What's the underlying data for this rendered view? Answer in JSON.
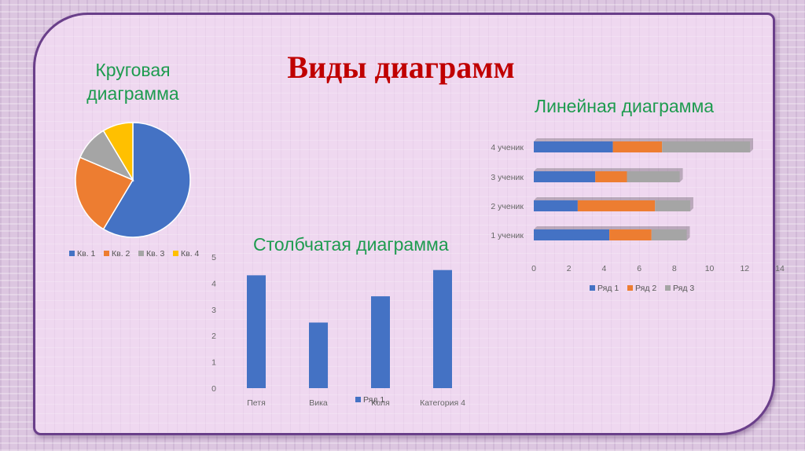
{
  "slide": {
    "title": "Виды диаграмм"
  },
  "pie_section": {
    "heading_line1": "Круговая",
    "heading_line2": "диаграмма"
  },
  "line_section": {
    "heading": "Линейная диаграмма"
  },
  "bar_section": {
    "heading": "Столбчатая диаграмма"
  },
  "colors": {
    "blue": "#4472c4",
    "orange": "#ed7d31",
    "gray": "#a5a5a5",
    "yellow": "#ffc000",
    "title_red": "#c00000",
    "heading_green": "#1e9b4f"
  },
  "chart_data": [
    {
      "type": "pie",
      "categories": [
        "Кв. 1",
        "Кв. 2",
        "Кв. 3",
        "Кв. 4"
      ],
      "values": [
        8.2,
        3.2,
        1.4,
        1.2
      ],
      "legend": "bottom"
    },
    {
      "type": "bar",
      "orientation": "horizontal",
      "stacked": true,
      "categories": [
        "1 ученик",
        "2 ученик",
        "3 ученик",
        "4 ученик"
      ],
      "series": [
        {
          "name": "Ряд 1",
          "values": [
            4.3,
            2.5,
            3.5,
            4.5
          ]
        },
        {
          "name": "Ряд 2",
          "values": [
            2.4,
            4.4,
            1.8,
            2.8
          ]
        },
        {
          "name": "Ряд 3",
          "values": [
            2.0,
            2.0,
            3.0,
            5.0
          ]
        }
      ],
      "xlim": [
        0,
        14
      ],
      "xticks": [
        0,
        2,
        4,
        6,
        8,
        10,
        12,
        14
      ],
      "legend": "bottom"
    },
    {
      "type": "bar",
      "categories": [
        "Петя",
        "Вика",
        "Коля",
        "Категория 4"
      ],
      "series": [
        {
          "name": "Ряд 1",
          "values": [
            4.3,
            2.5,
            3.5,
            4.5
          ]
        }
      ],
      "ylim": [
        0,
        5
      ],
      "yticks": [
        0,
        1,
        2,
        3,
        4,
        5
      ],
      "legend": "bottom"
    }
  ]
}
